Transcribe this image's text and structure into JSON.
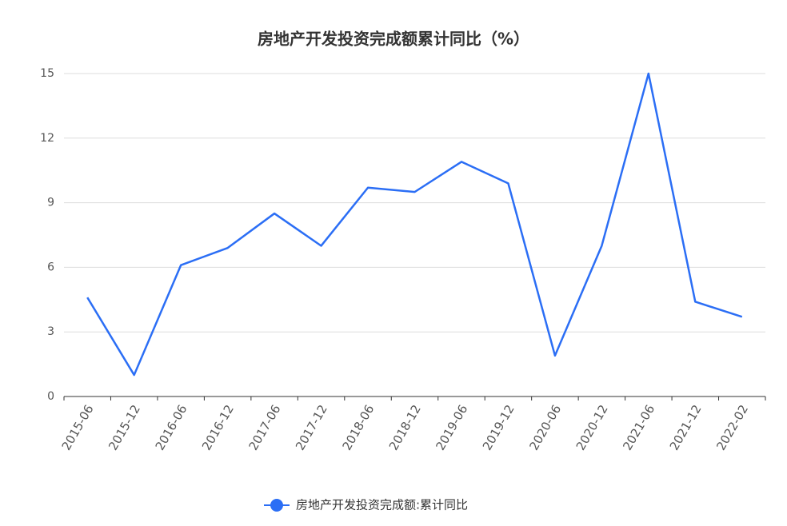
{
  "chart_data": {
    "type": "line",
    "title": "房地产开发投资完成额累计同比（%）",
    "categories": [
      "2015-06",
      "2015-12",
      "2016-06",
      "2016-12",
      "2017-06",
      "2017-12",
      "2018-06",
      "2018-12",
      "2019-06",
      "2019-12",
      "2020-06",
      "2020-12",
      "2021-06",
      "2021-12",
      "2022-02"
    ],
    "series": [
      {
        "name": "房地产开发投资完成额:累计同比",
        "color": "#2b6ef5",
        "values": [
          4.6,
          1.0,
          6.1,
          6.9,
          8.5,
          7.0,
          9.7,
          9.5,
          10.9,
          9.9,
          1.9,
          7.0,
          15.0,
          4.4,
          3.7
        ]
      }
    ],
    "ylim": [
      0,
      15
    ],
    "yticks": [
      0,
      3,
      6,
      9,
      12,
      15
    ],
    "grid": true
  }
}
